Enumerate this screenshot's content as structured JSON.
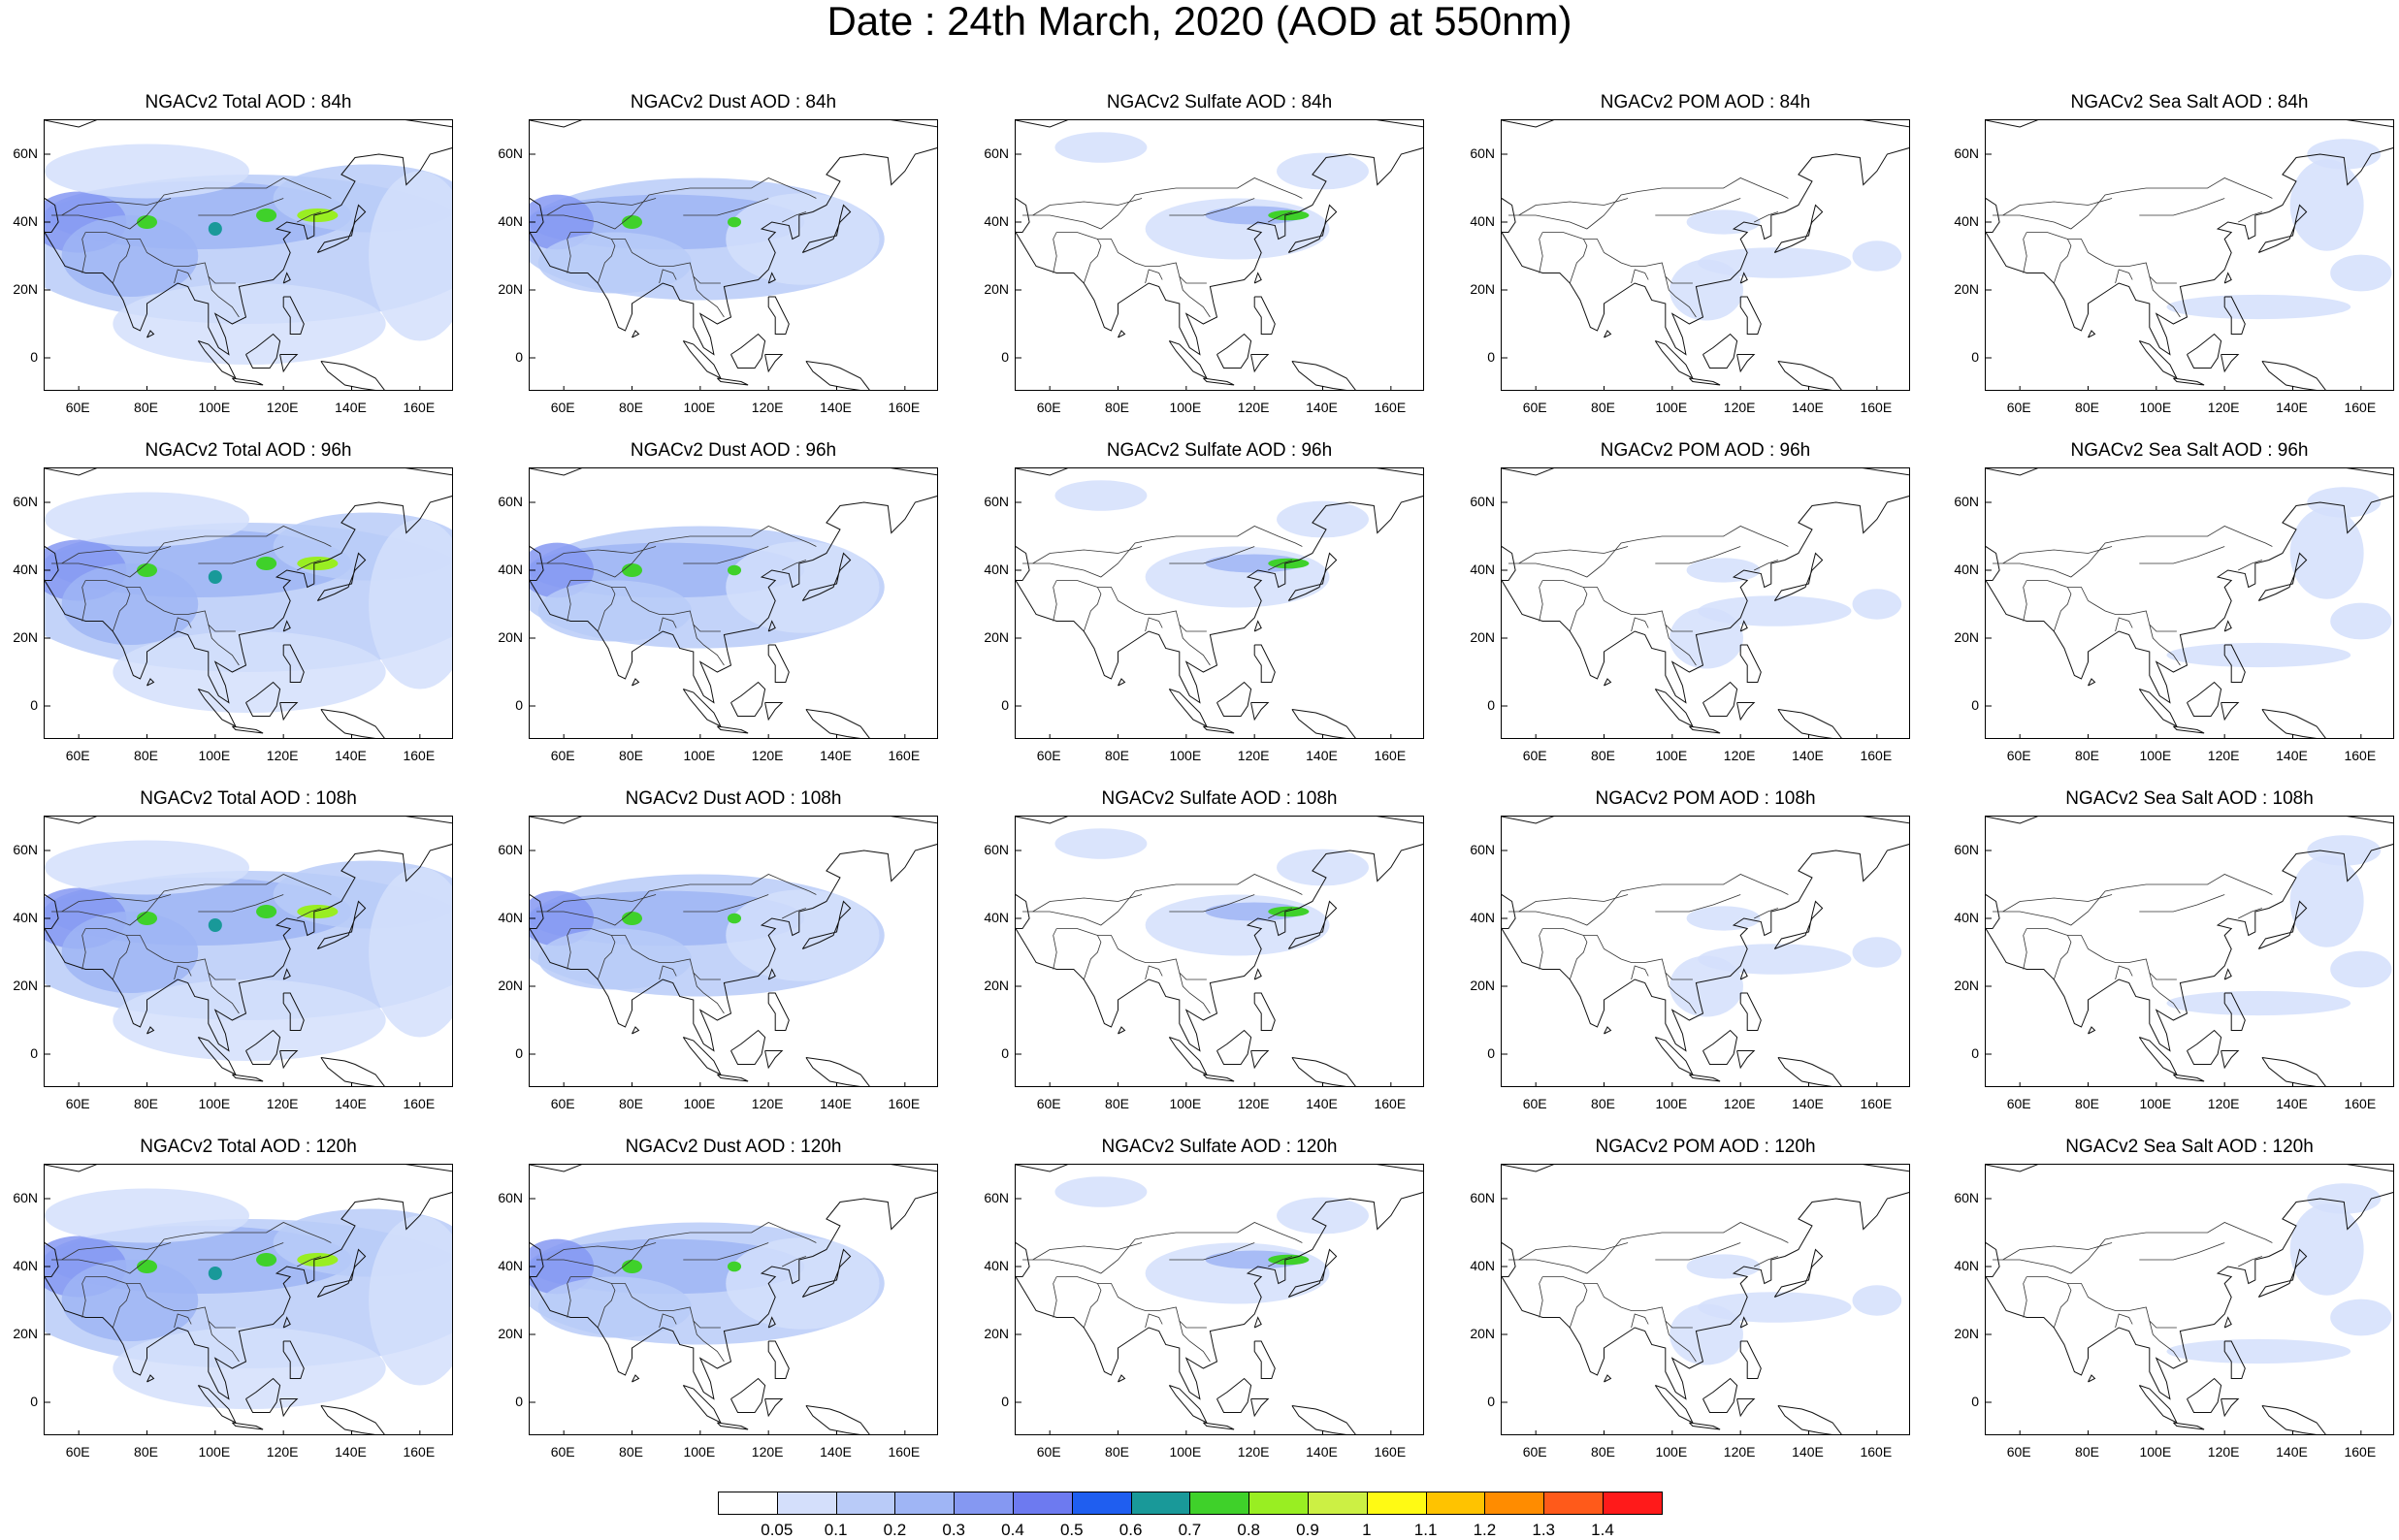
{
  "title": "Date : 24th March, 2020 (AOD at 550nm)",
  "panels": [
    [
      "NGACv2 Total AOD : 84h",
      "NGACv2 Dust AOD : 84h",
      "NGACv2 Sulfate AOD : 84h",
      "NGACv2 POM AOD : 84h",
      "NGACv2 Sea Salt AOD : 84h"
    ],
    [
      "NGACv2 Total AOD : 96h",
      "NGACv2 Dust AOD : 96h",
      "NGACv2 Sulfate AOD : 96h",
      "NGACv2 POM AOD : 96h",
      "NGACv2 Sea Salt AOD : 96h"
    ],
    [
      "NGACv2 Total AOD : 108h",
      "NGACv2 Dust AOD : 108h",
      "NGACv2 Sulfate AOD : 108h",
      "NGACv2 POM AOD : 108h",
      "NGACv2 Sea Salt AOD : 108h"
    ],
    [
      "NGACv2 Total AOD : 120h",
      "NGACv2 Dust AOD : 120h",
      "NGACv2 Sulfate AOD : 120h",
      "NGACv2 POM AOD : 120h",
      "NGACv2 Sea Salt  AOD : 120h"
    ]
  ],
  "lat_labels": [
    "60N",
    "40N",
    "20N",
    "0"
  ],
  "lon_labels": [
    "60E",
    "80E",
    "100E",
    "120E",
    "140E",
    "160E"
  ],
  "colorbar": {
    "labels": [
      "0.05",
      "0.1",
      "0.2",
      "0.3",
      "0.4",
      "0.5",
      "0.6",
      "0.7",
      "0.8",
      "0.9",
      "1",
      "1.1",
      "1.2",
      "1.3",
      "1.4"
    ],
    "colors": [
      "#ffffff",
      "#d4dffb",
      "#b9cbf8",
      "#9fb5f5",
      "#8598f2",
      "#6d7af0",
      "#1f5ef0",
      "#199999",
      "#3fd12a",
      "#99ee22",
      "#ccf044",
      "#fffa14",
      "#ffc300",
      "#ff8c00",
      "#ff5a1a",
      "#ff1a1a"
    ]
  }
}
